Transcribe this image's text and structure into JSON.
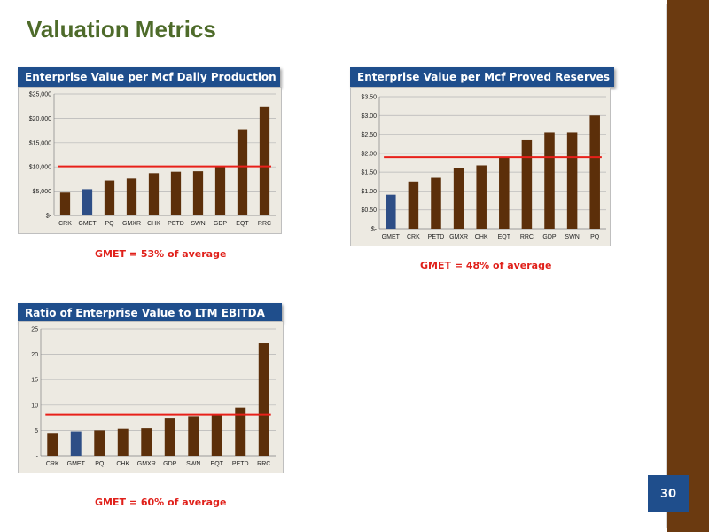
{
  "slide": {
    "title": "Valuation Metrics",
    "page_number": "30",
    "colors": {
      "title": "#4e6b2a",
      "header_bg": "#1f4e8c",
      "sidebar": "#6b3a10",
      "note": "#e0201a"
    }
  },
  "notes": {
    "chart1": "GMET = 53% of average",
    "chart2": "GMET = 48% of average",
    "chart3": "GMET = 60% of average"
  },
  "chart_data": [
    {
      "type": "bar",
      "title": "Enterprise Value per Mcf Daily Production",
      "categories": [
        "CRK",
        "GMET",
        "PQ",
        "GMXR",
        "CHK",
        "PETD",
        "SWN",
        "GDP",
        "EQT",
        "RRC"
      ],
      "values": [
        4700,
        5400,
        7200,
        7600,
        8700,
        9000,
        9100,
        10000,
        17600,
        22300
      ],
      "highlight": "GMET",
      "average": 10100,
      "ylim": [
        0,
        25000
      ],
      "yticks": [
        0,
        5000,
        10000,
        15000,
        20000,
        25000
      ],
      "ytick_labels": [
        "$-",
        "$5,000",
        "$10,000",
        "$15,000",
        "$20,000",
        "$25,000"
      ],
      "colors": {
        "bar": "#5c2f0a",
        "highlight": "#2e4e86",
        "average_line": "#e8201a",
        "plot_bg": "#edeae2"
      },
      "grid": true
    },
    {
      "type": "bar",
      "title": "Enterprise Value per Mcf Proved Reserves",
      "categories": [
        "GMET",
        "CRK",
        "PETD",
        "GMXR",
        "CHK",
        "EQT",
        "RRC",
        "GDP",
        "SWN",
        "PQ"
      ],
      "values": [
        0.9,
        1.25,
        1.35,
        1.6,
        1.68,
        1.88,
        2.35,
        2.55,
        2.55,
        3.0
      ],
      "highlight": "GMET",
      "average": 1.9,
      "ylim": [
        0,
        3.5
      ],
      "yticks": [
        0,
        0.5,
        1.0,
        1.5,
        2.0,
        2.5,
        3.0,
        3.5
      ],
      "ytick_labels": [
        "$-",
        "$0.50",
        "$1.00",
        "$1.50",
        "$2.00",
        "$2.50",
        "$3.00",
        "$3.50"
      ],
      "colors": {
        "bar": "#5c2f0a",
        "highlight": "#2e4e86",
        "average_line": "#e8201a",
        "plot_bg": "#edeae2"
      },
      "grid": true
    },
    {
      "type": "bar",
      "title": "Ratio of Enterprise Value to LTM EBITDA",
      "categories": [
        "CRK",
        "GMET",
        "PQ",
        "CHK",
        "GMXR",
        "GDP",
        "SWN",
        "EQT",
        "PETD",
        "RRC"
      ],
      "values": [
        4.5,
        4.8,
        5.0,
        5.3,
        5.4,
        7.5,
        7.8,
        8.2,
        9.5,
        22.2
      ],
      "highlight": "GMET",
      "average": 8.1,
      "ylim": [
        0,
        25
      ],
      "yticks": [
        0,
        5,
        10,
        15,
        20,
        25
      ],
      "ytick_labels": [
        "-",
        "5",
        "10",
        "15",
        "20",
        "25"
      ],
      "colors": {
        "bar": "#5c2f0a",
        "highlight": "#2e4e86",
        "average_line": "#e8201a",
        "plot_bg": "#edeae2"
      },
      "grid": true
    }
  ]
}
